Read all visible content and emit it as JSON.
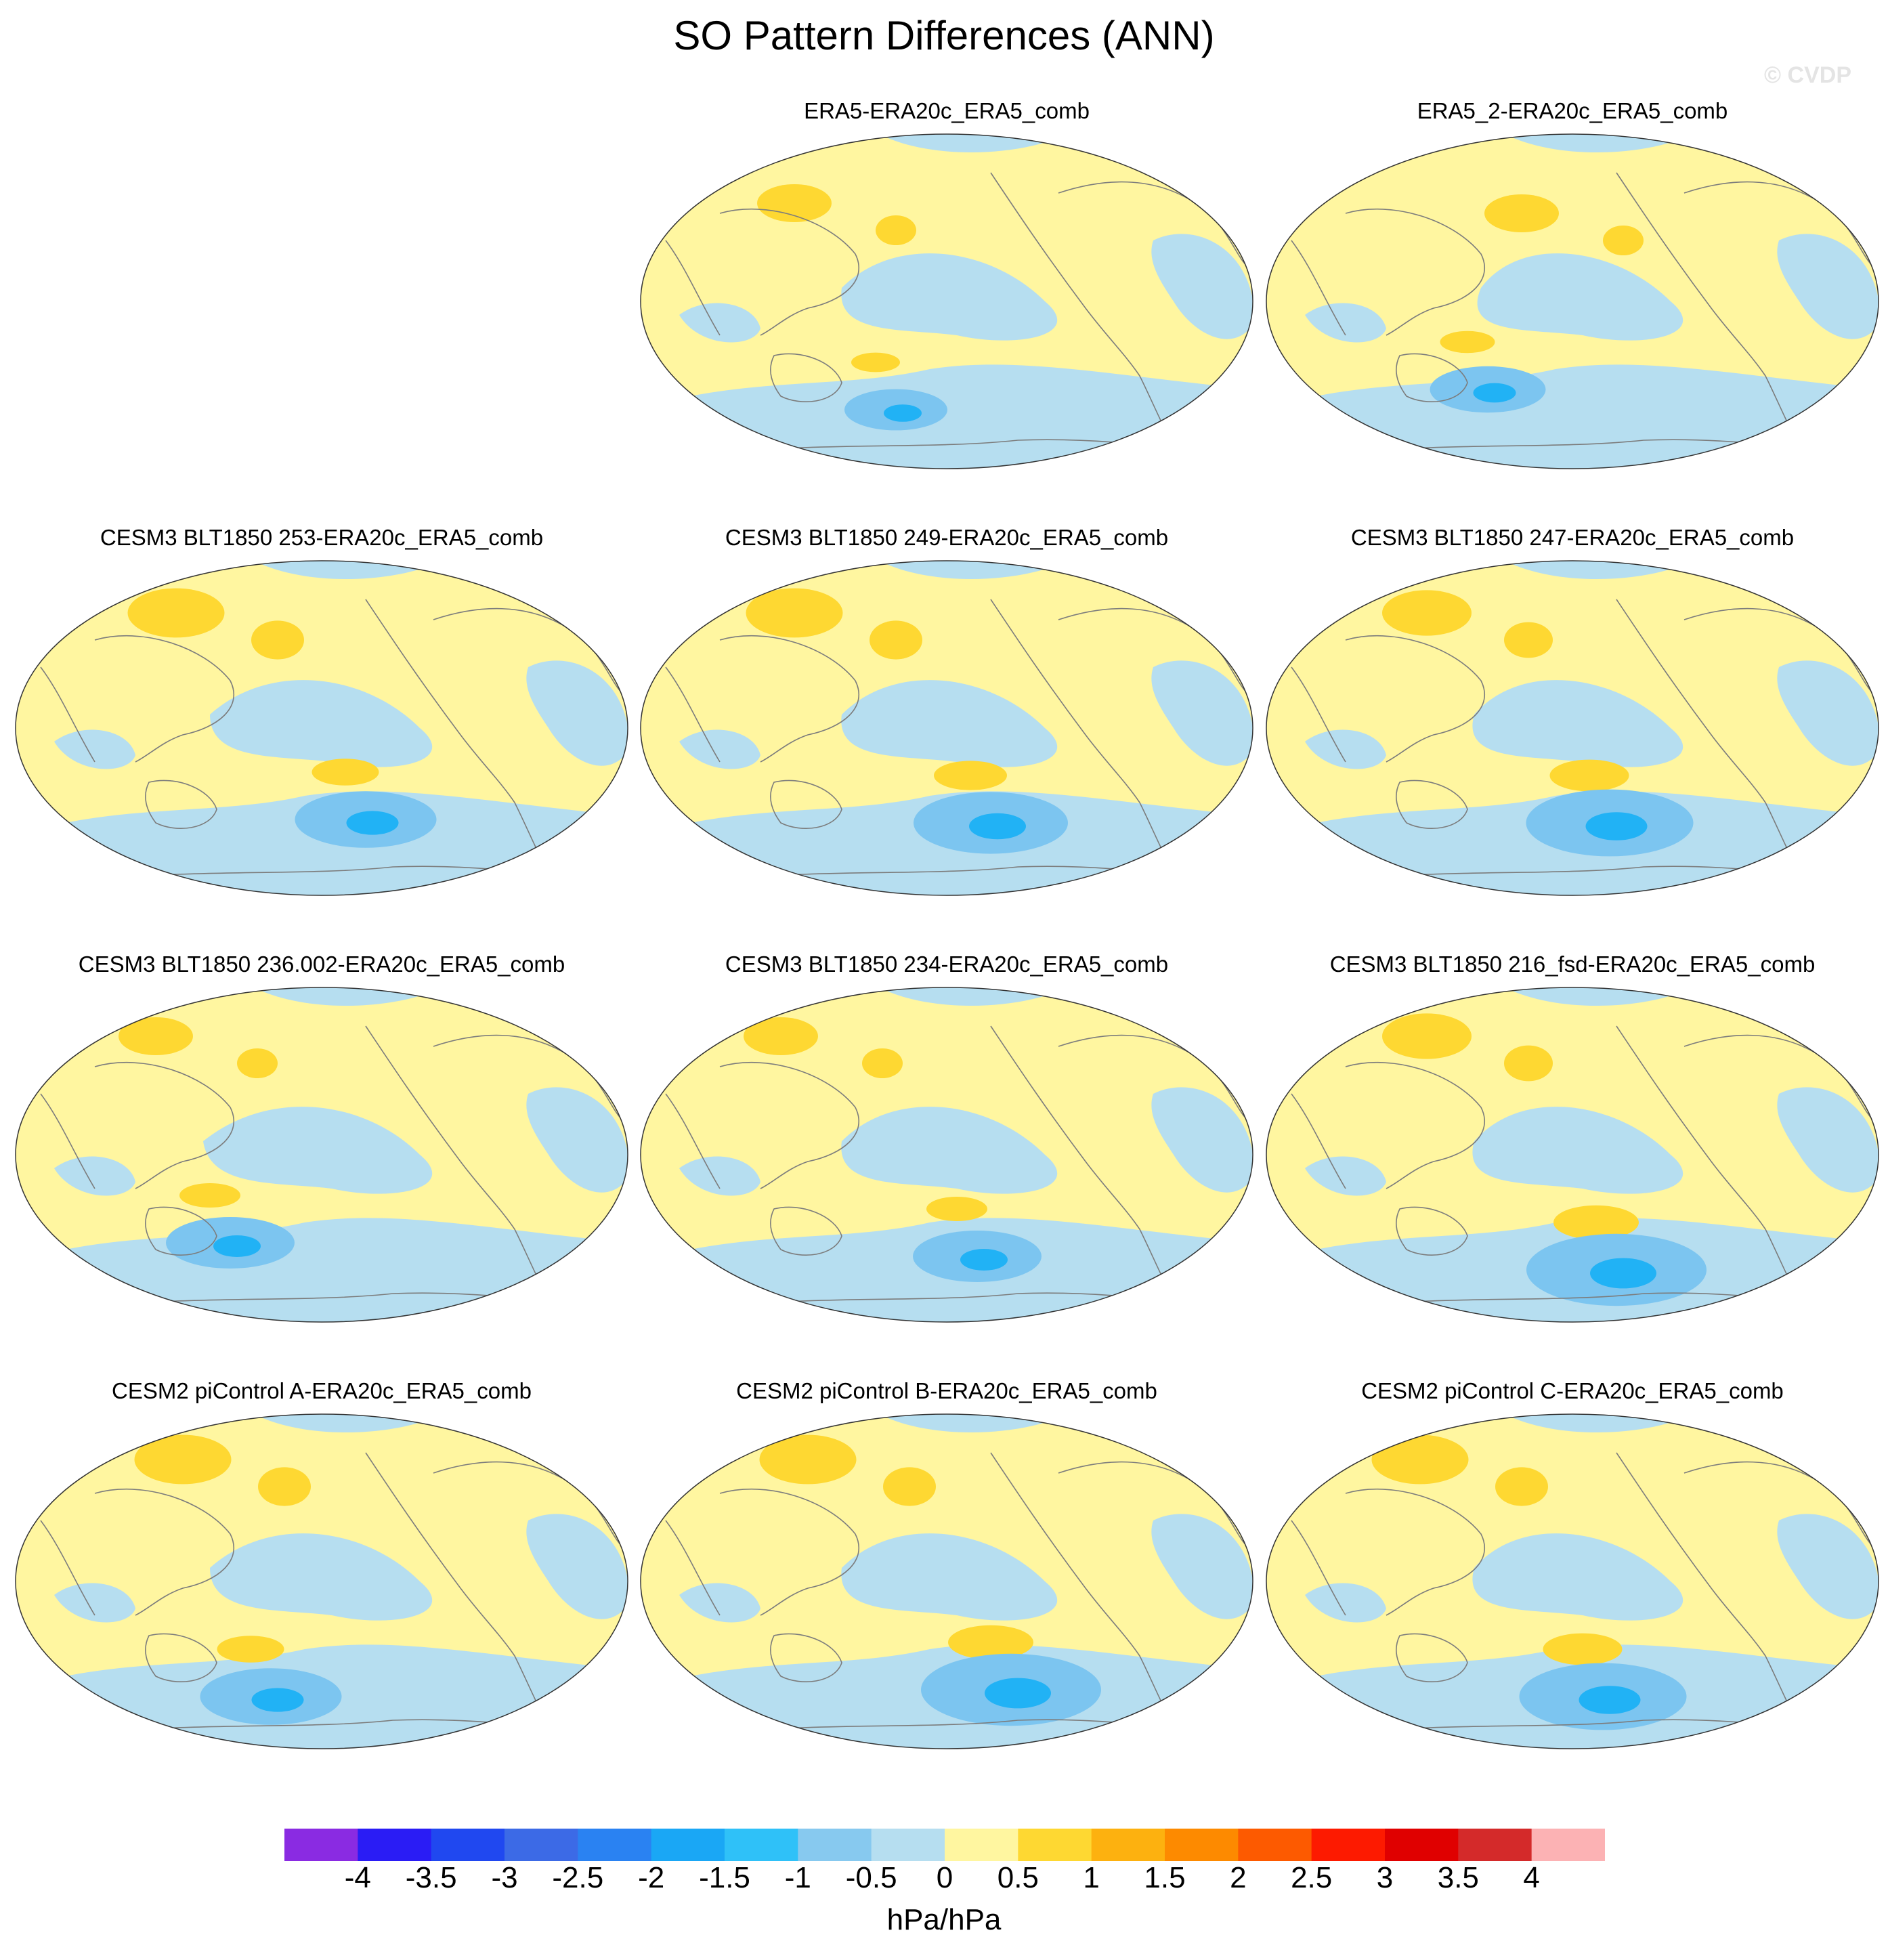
{
  "title": "SO Pattern Differences (ANN)",
  "watermark": "© CVDP",
  "colors": {
    "ocean_blue": "#b6def0",
    "light_yellow": "#fff6a0",
    "gold": "#fed832",
    "mid_blue": "#7cc5f0",
    "bright_blue": "#21b2f5",
    "orange": "#fdb10f",
    "coast": "#7c7c7c"
  },
  "chart_data": {
    "type": "map-panels",
    "projection": "Robinson-like global map",
    "panels": [
      {
        "title": "ERA5-ERA20c_ERA5_comb"
      },
      {
        "title": "ERA5_2-ERA20c_ERA5_comb"
      },
      {
        "title": "CESM3 BLT1850 253-ERA20c_ERA5_comb"
      },
      {
        "title": "CESM3 BLT1850 249-ERA20c_ERA5_comb"
      },
      {
        "title": "CESM3 BLT1850 247-ERA20c_ERA5_comb"
      },
      {
        "title": "CESM3 BLT1850 236.002-ERA20c_ERA5_comb"
      },
      {
        "title": "CESM3 BLT1850 234-ERA20c_ERA5_comb"
      },
      {
        "title": "CESM3 BLT1850 216_fsd-ERA20c_ERA5_comb"
      },
      {
        "title": "CESM2 piControl A-ERA20c_ERA5_comb"
      },
      {
        "title": "CESM2 piControl B-ERA20c_ERA5_comb"
      },
      {
        "title": "CESM2 piControl C-ERA20c_ERA5_comb"
      }
    ],
    "colorbar": {
      "units": "hPa/hPa",
      "levels": [
        "-4",
        "-3.5",
        "-3",
        "-2.5",
        "-2",
        "-1.5",
        "-1",
        "-0.5",
        "0",
        "0.5",
        "1",
        "1.5",
        "2",
        "2.5",
        "3",
        "3.5",
        "4"
      ],
      "colors": [
        "#8a2be2",
        "#2a1cf5",
        "#2048f0",
        "#3c6ae6",
        "#2a82f2",
        "#1aa7f5",
        "#2fc1f8",
        "#87c9ef",
        "#b6def0",
        "#fff6a0",
        "#fed832",
        "#fdb10f",
        "#fd8a00",
        "#fd5a00",
        "#fd1a00",
        "#e00000",
        "#d42a2a",
        "#fcb2b4"
      ]
    }
  }
}
